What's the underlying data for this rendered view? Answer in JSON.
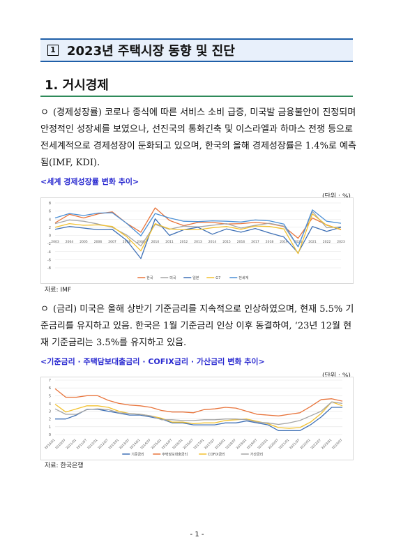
{
  "title": {
    "number": "1",
    "text": "2023년 주택시장 동향 및 진단"
  },
  "section": {
    "title": "1. 거시경제"
  },
  "para1": {
    "bullet": "ㅇ",
    "text": "(경제성장률) 코로나 종식에 따른 서비스 소비 급증, 미국발 금융불안이 진정되며 안정적인 성장세를 보였으나, 선진국의 통화긴축 및 이스라엘과 하마스 전쟁 등으로 전세계적으로 경제성장이 둔화되고 있으며, 한국의 올해 경제성장률은 1.4%로 예측됨(IMF, KDI)."
  },
  "chart1": {
    "caption": "<세계 경제성장률 변화 추이>",
    "unit": "(단위 : %)",
    "source": "자료: IMF"
  },
  "para2": {
    "bullet": "ㅇ",
    "text": "(금리) 미국은 올해 상반기 기준금리를 지속적으로 인상하였으며, 현재 5.5% 기준금리를 유지하고 있음. 한국은 1월 기준금리 인상 이후 동결하여, ‘23년 12월 현재 기준금리는 3.5%를 유지하고 있음."
  },
  "chart2": {
    "caption": "<기준금리 · 주택담보대출금리 · COFIX금리 · 가산금리 변화 추이>",
    "unit": "(단위 : %)",
    "source": "자료: 한국은행"
  },
  "page_number": "- 1 -",
  "chart_data": [
    {
      "type": "line",
      "x": [
        "2003",
        "2004",
        "2005",
        "2006",
        "2007",
        "2008",
        "2009",
        "2010",
        "2011",
        "2012",
        "2013",
        "2014",
        "2015",
        "2016",
        "2017",
        "2018",
        "2019",
        "2020",
        "2021",
        "2022",
        "2023"
      ],
      "ylim": [
        -8,
        8
      ],
      "yticks": [
        8,
        6,
        4,
        2,
        0,
        -2,
        -4,
        -6,
        -8
      ],
      "legend_position": "bottom",
      "grid": true,
      "series": [
        {
          "name": "한국",
          "color": "#e8743b",
          "values": [
            3.1,
            5.2,
            4.3,
            5.3,
            5.8,
            3.0,
            0.8,
            6.8,
            3.7,
            2.4,
            3.2,
            3.2,
            2.8,
            2.9,
            3.2,
            2.9,
            2.2,
            -0.7,
            4.3,
            2.6,
            1.4
          ]
        },
        {
          "name": "미국",
          "color": "#a5a5a5",
          "values": [
            2.9,
            3.8,
            3.5,
            2.8,
            2.0,
            0.1,
            -2.6,
            2.7,
            1.5,
            2.3,
            2.1,
            2.5,
            2.9,
            1.8,
            2.5,
            3.0,
            2.3,
            -2.8,
            5.9,
            1.9,
            2.1
          ]
        },
        {
          "name": "일본",
          "color": "#3d6fb5",
          "values": [
            1.5,
            2.2,
            1.8,
            1.4,
            1.5,
            -1.2,
            -5.7,
            4.1,
            0.0,
            1.4,
            2.0,
            0.3,
            1.6,
            0.8,
            1.7,
            0.6,
            -0.4,
            -4.3,
            2.2,
            1.0,
            2.0
          ]
        },
        {
          "name": "G7",
          "color": "#f2c12e",
          "values": [
            2.0,
            2.9,
            2.5,
            2.6,
            2.2,
            -0.3,
            -3.8,
            2.9,
            1.6,
            1.4,
            1.4,
            1.9,
            2.2,
            1.5,
            2.3,
            2.2,
            1.6,
            -4.5,
            5.3,
            2.5,
            1.5
          ]
        },
        {
          "name": "전세계",
          "color": "#4a8fd6",
          "values": [
            4.3,
            5.4,
            4.9,
            5.5,
            5.6,
            3.0,
            -0.1,
            5.4,
            4.3,
            3.5,
            3.4,
            3.6,
            3.5,
            3.3,
            3.8,
            3.6,
            2.8,
            -2.8,
            6.3,
            3.5,
            3.0
          ]
        }
      ]
    },
    {
      "type": "line",
      "x": [
        "2010/01",
        "2010/07",
        "2011/01",
        "2011/07",
        "2012/01",
        "2012/07",
        "2013/01",
        "2013/07",
        "2014/01",
        "2014/07",
        "2015/01",
        "2015/07",
        "2016/01",
        "2016/07",
        "2017/01",
        "2017/07",
        "2018/01",
        "2018/07",
        "2019/01",
        "2019/07",
        "2020/01",
        "2020/07",
        "2021/01",
        "2021/07",
        "2022/01",
        "2022/07",
        "2023/01",
        "2023/07"
      ],
      "ylim": [
        0,
        7
      ],
      "yticks": [
        7,
        6,
        5,
        4,
        3,
        2,
        1,
        0
      ],
      "legend_position": "bottom",
      "grid": true,
      "series": [
        {
          "name": "기준금리",
          "color": "#3d6fb5",
          "values": [
            2.0,
            2.0,
            2.5,
            3.25,
            3.25,
            3.0,
            2.75,
            2.5,
            2.5,
            2.25,
            2.0,
            1.5,
            1.5,
            1.25,
            1.25,
            1.25,
            1.5,
            1.5,
            1.75,
            1.5,
            1.25,
            0.5,
            0.5,
            0.5,
            1.25,
            2.25,
            3.5,
            3.5
          ]
        },
        {
          "name": "주택담보대출금리",
          "color": "#e8743b",
          "values": [
            5.9,
            4.8,
            4.8,
            5.0,
            5.0,
            4.4,
            4.0,
            3.8,
            3.7,
            3.5,
            3.1,
            2.9,
            2.9,
            2.8,
            3.2,
            3.3,
            3.5,
            3.4,
            3.0,
            2.6,
            2.5,
            2.4,
            2.6,
            2.8,
            3.6,
            4.5,
            4.6,
            4.3
          ]
        },
        {
          "name": "COFIX금리",
          "color": "#f2c12e",
          "values": [
            3.9,
            2.9,
            3.3,
            3.7,
            3.7,
            3.5,
            3.0,
            2.7,
            2.6,
            2.4,
            2.1,
            1.6,
            1.6,
            1.4,
            1.5,
            1.5,
            1.8,
            1.9,
            2.0,
            1.7,
            1.4,
            0.9,
            0.8,
            0.9,
            1.6,
            2.7,
            4.2,
            3.7
          ]
        },
        {
          "name": "가산금리",
          "color": "#a5a5a5",
          "values": [
            3.3,
            2.6,
            2.6,
            3.2,
            3.3,
            3.2,
            2.8,
            2.7,
            2.6,
            2.4,
            1.9,
            1.9,
            1.8,
            1.8,
            1.9,
            1.9,
            2.0,
            2.0,
            1.9,
            1.6,
            1.5,
            1.3,
            1.5,
            1.8,
            2.4,
            3.0,
            4.2,
            4.0
          ]
        }
      ]
    }
  ]
}
